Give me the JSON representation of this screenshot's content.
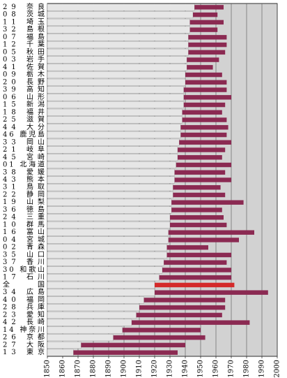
{
  "chart_data": {
    "type": "range-bar",
    "categories": [
      "29 奈良",
      "08 茨城",
      "11 埼玉",
      "32 島根",
      "07 福島",
      "12 千葉",
      "05 秋田",
      "03 岩手",
      "41 佐賀",
      "09 栃木",
      "20 長野",
      "39 高知",
      "06 山形",
      "15 新潟",
      "18 福井",
      "25 滋賀",
      "44 大分",
      "46 鹿児島",
      "33 岡山",
      "21 岐阜",
      "45 宮崎",
      "01 北海道",
      "38 愛媛",
      "43 熊本",
      "31 鳥取",
      "22 静岡",
      "19 山梨",
      "36 徳島",
      "24 三重",
      "10 群馬",
      "16 富山",
      "04 宮城",
      "02 青森",
      "35 山口",
      "37 香川",
      "30 和歌山",
      "17 石川",
      "全国",
      "34 広島",
      "40 福岡",
      "28 兵庫",
      "23 愛知",
      "42 長崎",
      "14 神奈川",
      "26 京都",
      "27 大阪",
      "13 東京"
    ],
    "start": [
      1946,
      1945,
      1943,
      1943,
      1942,
      1942,
      1942,
      1941,
      1941,
      1940,
      1940,
      1939,
      1939,
      1939,
      1938,
      1938,
      1937,
      1937,
      1936,
      1935,
      1935,
      1934,
      1933,
      1933,
      1932,
      1932,
      1931,
      1931,
      1930,
      1930,
      1929,
      1929,
      1928,
      1928,
      1926,
      1925,
      1923,
      1920,
      1920,
      1913,
      1910,
      1908,
      1905,
      1899,
      1893,
      1872,
      1867
    ],
    "end": [
      1965,
      1961,
      1965,
      1961,
      1967,
      1967,
      1966,
      1962,
      1958,
      1964,
      1967,
      1967,
      1970,
      1966,
      1964,
      1967,
      1968,
      1967,
      1970,
      1966,
      1964,
      1970,
      1966,
      1970,
      1963,
      1966,
      1978,
      1964,
      1965,
      1967,
      1985,
      1975,
      1955,
      1970,
      1967,
      1970,
      1970,
      1972,
      1994,
      1966,
      1966,
      1964,
      1982,
      1950,
      1953,
      1940,
      1935
    ],
    "base_color": "#e6e6e6",
    "bar_colors": [
      "#8b2a52",
      "#8b2a52",
      "#8b2a52",
      "#8b2a52",
      "#8b2a52",
      "#8b2a52",
      "#8b2a52",
      "#8b2a52",
      "#8b2a52",
      "#8b2a52",
      "#8b2a52",
      "#8b2a52",
      "#8b2a52",
      "#8b2a52",
      "#8b2a52",
      "#8b2a52",
      "#8b2a52",
      "#8b2a52",
      "#8b2a52",
      "#8b2a52",
      "#8b2a52",
      "#8b2a52",
      "#8b2a52",
      "#8b2a52",
      "#8b2a52",
      "#8b2a52",
      "#8b2a52",
      "#8b2a52",
      "#8b2a52",
      "#8b2a52",
      "#8b2a52",
      "#8b2a52",
      "#8b2a52",
      "#8b2a52",
      "#8b2a52",
      "#8b2a52",
      "#8b2a52",
      "#d42a2a",
      "#8b2a52",
      "#8b2a52",
      "#8b2a52",
      "#8b2a52",
      "#8b2a52",
      "#8b2a52",
      "#8b2a52",
      "#8b2a52",
      "#8b2a52"
    ],
    "xlim": [
      1850,
      2000
    ],
    "xticks": [
      1850,
      1860,
      1870,
      1880,
      1890,
      1900,
      1910,
      1920,
      1930,
      1940,
      1950,
      1960,
      1970,
      1980,
      1990,
      2000
    ],
    "grid": true
  }
}
